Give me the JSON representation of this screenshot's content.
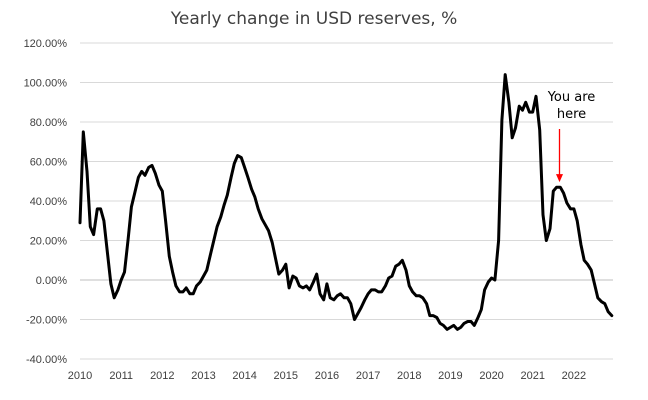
{
  "chart_data": {
    "type": "line",
    "title": "Yearly change in USD reserves, %",
    "xlabel": "",
    "ylabel": "",
    "ylim": [
      -40,
      120
    ],
    "xlim": [
      2010,
      2022.95
    ],
    "y_ticks": [
      -40,
      -20,
      0,
      20,
      40,
      60,
      80,
      100,
      120
    ],
    "y_tick_labels": [
      "-40.00%",
      "-20.00%",
      "0.00%",
      "20.00%",
      "40.00%",
      "60.00%",
      "80.00%",
      "100.00%",
      "120.00%"
    ],
    "x_ticks": [
      2010,
      2011,
      2012,
      2013,
      2014,
      2015,
      2016,
      2017,
      2018,
      2019,
      2020,
      2021,
      2022
    ],
    "x_tick_labels": [
      "2010",
      "2011",
      "2012",
      "2013",
      "2014",
      "2015",
      "2016",
      "2017",
      "2018",
      "2019",
      "2020",
      "2021",
      "2022"
    ],
    "grid": "horizontal",
    "legend": "none",
    "line_color": "#000000",
    "annotation": {
      "lines": [
        "You are",
        "here"
      ],
      "arrow_color": "#ff0000",
      "x": 2021.65,
      "y": 47
    },
    "series": [
      {
        "x": [
          2010.0,
          2010.08,
          2010.17,
          2010.25,
          2010.33,
          2010.42,
          2010.5,
          2010.58,
          2010.67,
          2010.75,
          2010.83,
          2010.92,
          2011.0,
          2011.08,
          2011.17,
          2011.25,
          2011.33,
          2011.42,
          2011.5,
          2011.58,
          2011.67,
          2011.75,
          2011.83,
          2011.92,
          2012.0,
          2012.08,
          2012.17,
          2012.25,
          2012.33,
          2012.42,
          2012.5,
          2012.58,
          2012.67,
          2012.75,
          2012.83,
          2012.92,
          2013.0,
          2013.08,
          2013.17,
          2013.25,
          2013.33,
          2013.42,
          2013.5,
          2013.58,
          2013.67,
          2013.75,
          2013.83,
          2013.92,
          2014.0,
          2014.08,
          2014.17,
          2014.25,
          2014.33,
          2014.42,
          2014.5,
          2014.58,
          2014.67,
          2014.75,
          2014.83,
          2014.92,
          2015.0,
          2015.08,
          2015.17,
          2015.25,
          2015.33,
          2015.42,
          2015.5,
          2015.58,
          2015.67,
          2015.75,
          2015.83,
          2015.92,
          2016.0,
          2016.08,
          2016.17,
          2016.25,
          2016.33,
          2016.42,
          2016.5,
          2016.58,
          2016.67,
          2016.75,
          2016.83,
          2016.92,
          2017.0,
          2017.08,
          2017.17,
          2017.25,
          2017.33,
          2017.42,
          2017.5,
          2017.58,
          2017.67,
          2017.75,
          2017.83,
          2017.92,
          2018.0,
          2018.08,
          2018.17,
          2018.25,
          2018.33,
          2018.42,
          2018.5,
          2018.58,
          2018.67,
          2018.75,
          2018.83,
          2018.92,
          2019.0,
          2019.08,
          2019.17,
          2019.25,
          2019.33,
          2019.42,
          2019.5,
          2019.58,
          2019.67,
          2019.75,
          2019.83,
          2019.92,
          2020.0,
          2020.08,
          2020.17,
          2020.25,
          2020.33,
          2020.42,
          2020.5,
          2020.58,
          2020.67,
          2020.75,
          2020.83,
          2020.92,
          2021.0,
          2021.08,
          2021.17,
          2021.25,
          2021.33,
          2021.42,
          2021.5,
          2021.58,
          2021.67,
          2021.75,
          2021.83,
          2021.92,
          2022.0,
          2022.08,
          2022.17,
          2022.25,
          2022.33,
          2022.42,
          2022.5,
          2022.58,
          2022.67,
          2022.75,
          2022.83,
          2022.92
        ],
        "values": [
          29,
          75,
          55,
          27,
          23,
          36,
          36,
          30,
          13,
          -2,
          -9,
          -5,
          0,
          4,
          21,
          37,
          44,
          52,
          55,
          53,
          57,
          58,
          54,
          48,
          45,
          30,
          12,
          4,
          -3,
          -6,
          -6,
          -4,
          -7,
          -7,
          -3,
          -1,
          2,
          5,
          13,
          20,
          27,
          32,
          38,
          43,
          52,
          59,
          63,
          62,
          57,
          52,
          46,
          42,
          36,
          31,
          28,
          25,
          19,
          11,
          3,
          5,
          8,
          -4,
          2,
          1,
          -3,
          -4,
          -3,
          -5,
          -1,
          3,
          -7,
          -10,
          -2,
          -9,
          -10,
          -8,
          -7,
          -9,
          -9,
          -12,
          -20,
          -17,
          -14,
          -10,
          -7,
          -5,
          -5,
          -6,
          -6,
          -3,
          1,
          2,
          7,
          8,
          10,
          5,
          -3,
          -6,
          -8,
          -8,
          -9,
          -12,
          -18,
          -18,
          -19,
          -22,
          -23,
          -25,
          -24,
          -23,
          -25,
          -24,
          -22,
          -21,
          -21,
          -23,
          -19,
          -15,
          -5,
          -1,
          1,
          0,
          20,
          81,
          104,
          90,
          72,
          77,
          88,
          86,
          90,
          85,
          85,
          93,
          76,
          33,
          20,
          26,
          45,
          47,
          47,
          44,
          39,
          36,
          36,
          30,
          18,
          10,
          8,
          5,
          -2,
          -9,
          -11,
          -12,
          -16,
          -18
        ]
      }
    ]
  }
}
